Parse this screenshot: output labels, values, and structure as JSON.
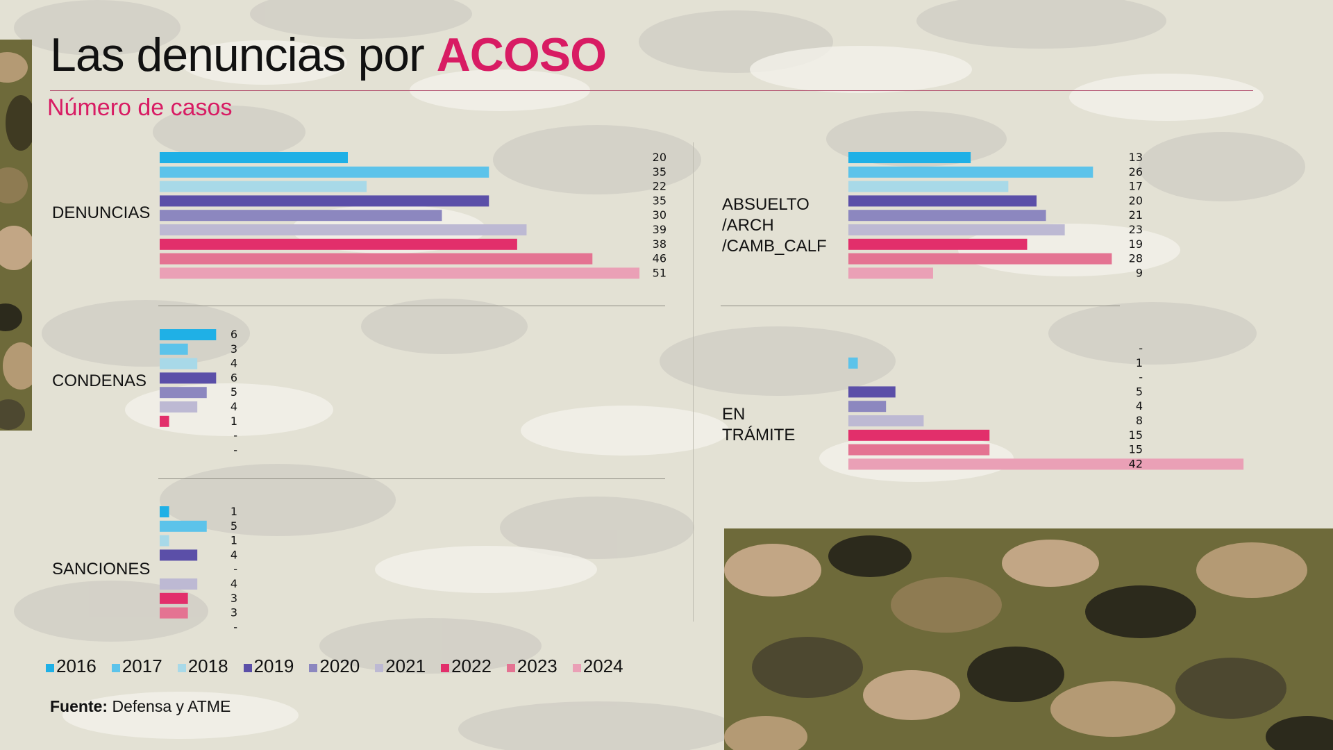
{
  "title": {
    "main": "Las denuncias por",
    "accent": "ACOSO"
  },
  "subtitle": "Número de casos",
  "colors": {
    "2016": "#1fb0e6",
    "2017": "#5cc3ea",
    "2018": "#a8d9e8",
    "2019": "#5b4fa8",
    "2020": "#8c87bf",
    "2021": "#bdb9d3",
    "2022": "#e22f6b",
    "2023": "#e47392",
    "2024": "#eaa0b6",
    "accent": "#d81b63",
    "background": "#e3e1d4"
  },
  "legend": [
    "2016",
    "2017",
    "2018",
    "2019",
    "2020",
    "2021",
    "2022",
    "2023",
    "2024"
  ],
  "chart_data": [
    {
      "type": "bar",
      "title": "DENUNCIAS",
      "categories": [
        "2016",
        "2017",
        "2018",
        "2019",
        "2020",
        "2021",
        "2022",
        "2023",
        "2024"
      ],
      "values": [
        20,
        35,
        22,
        35,
        30,
        39,
        38,
        46,
        51
      ],
      "labels": [
        "20",
        "35",
        "22",
        "35",
        "30",
        "39",
        "38",
        "46",
        "51"
      ]
    },
    {
      "type": "bar",
      "title": "ABSUELTO\n/ARCH\n/CAMB_CALF",
      "categories": [
        "2016",
        "2017",
        "2018",
        "2019",
        "2020",
        "2021",
        "2022",
        "2023",
        "2024"
      ],
      "values": [
        13,
        26,
        17,
        20,
        21,
        23,
        19,
        28,
        9
      ],
      "labels": [
        "13",
        "26",
        "17",
        "20",
        "21",
        "23",
        "19",
        "28",
        "9"
      ]
    },
    {
      "type": "bar",
      "title": "CONDENAS",
      "categories": [
        "2016",
        "2017",
        "2018",
        "2019",
        "2020",
        "2021",
        "2022",
        "2023",
        "2024"
      ],
      "values": [
        6,
        3,
        4,
        6,
        5,
        4,
        1,
        null,
        null
      ],
      "labels": [
        "6",
        "3",
        "4",
        "6",
        "5",
        "4",
        "1",
        "-",
        "-"
      ]
    },
    {
      "type": "bar",
      "title": "EN TRÁMITE",
      "categories": [
        "2016",
        "2017",
        "2018",
        "2019",
        "2020",
        "2021",
        "2022",
        "2023",
        "2024"
      ],
      "values": [
        null,
        1,
        null,
        5,
        4,
        8,
        15,
        15,
        42
      ],
      "labels": [
        "-",
        "1",
        "-",
        "5",
        "4",
        "8",
        "15",
        "15",
        "42"
      ]
    },
    {
      "type": "bar",
      "title": "SANCIONES",
      "categories": [
        "2016",
        "2017",
        "2018",
        "2019",
        "2020",
        "2021",
        "2022",
        "2023",
        "2024"
      ],
      "values": [
        1,
        5,
        1,
        4,
        null,
        4,
        3,
        3,
        null
      ],
      "labels": [
        "1",
        "5",
        "1",
        "4",
        "-",
        "4",
        "3",
        "3",
        "-"
      ]
    }
  ],
  "source": {
    "label": "Fuente:",
    "text": "Defensa y ATME"
  }
}
